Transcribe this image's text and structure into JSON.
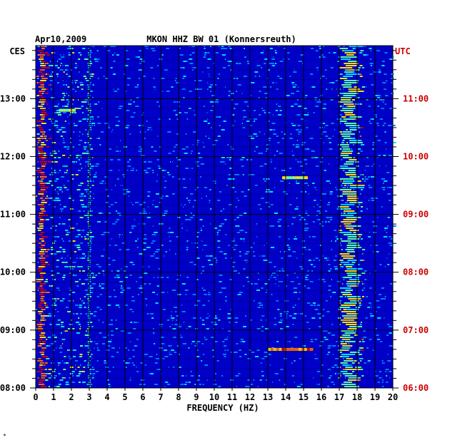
{
  "chart_data": {
    "type": "heatmap",
    "header_left": "Apr10,2009",
    "title": "MKON HHZ BW 01 (Konnersreuth)",
    "xlabel": "FREQUENCY (HZ)",
    "left_axis_label": "CES",
    "right_axis_label": "UTC",
    "xlim": [
      0,
      20
    ],
    "x_ticks": [
      "0",
      "1",
      "2",
      "3",
      "4",
      "5",
      "6",
      "7",
      "8",
      "9",
      "10",
      "11",
      "12",
      "13",
      "14",
      "15",
      "16",
      "17",
      "18",
      "19",
      "20"
    ],
    "left_time_ticks": [
      "13:00",
      "12:00",
      "11:00",
      "10:00",
      "09:00",
      "08:00"
    ],
    "right_time_ticks": [
      "11:00",
      "10:00",
      "09:00",
      "08:00",
      "07:00",
      "06:00"
    ],
    "time_range_ces": [
      "08:00",
      "13:55"
    ],
    "colors": {
      "background": "#0000c8",
      "grid": "#000000",
      "utc_text": "#cc0000",
      "frame_text": "#000000"
    },
    "features": [
      {
        "type": "band",
        "freq_range": [
          0.1,
          0.6
        ],
        "intensity": "high"
      },
      {
        "type": "band",
        "freq_range": [
          17.0,
          18.2
        ],
        "intensity": "medium"
      },
      {
        "type": "band",
        "freq_range": [
          2.9,
          3.1
        ],
        "intensity": "low"
      },
      {
        "type": "event",
        "freq_range": [
          13.0,
          15.5
        ],
        "time_ces": "08:40",
        "intensity": "high"
      },
      {
        "type": "event",
        "freq_range": [
          13.8,
          15.2
        ],
        "time_ces": "11:38",
        "intensity": "medium"
      },
      {
        "type": "event",
        "freq_range": [
          1.3,
          2.2
        ],
        "time_ces": "12:48",
        "intensity": "medium"
      }
    ]
  },
  "footer_mark": "*"
}
